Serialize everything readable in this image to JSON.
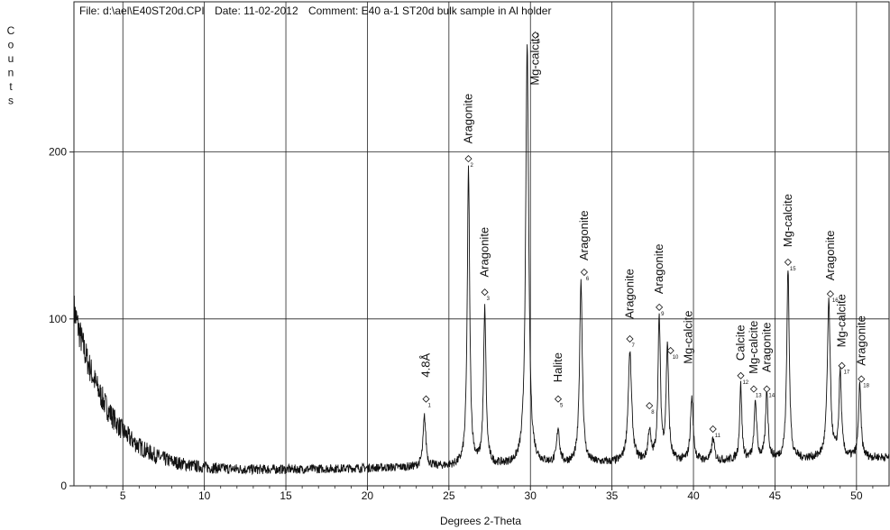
{
  "header": {
    "file_label": "File:",
    "file_value": "d:\\ael\\E40ST20d.CPI",
    "date_label": "Date:",
    "date_value": "11-02-2012",
    "comment_label": "Comment:",
    "comment_value": "E40 a-1 ST20d bulk sample in Al holder"
  },
  "chart_data": {
    "type": "line",
    "title": "",
    "xlabel": "Degrees 2-Theta",
    "ylabel": "Counts",
    "xlim": [
      2,
      52
    ],
    "ylim": [
      0,
      290
    ],
    "x_ticks": [
      5,
      10,
      15,
      20,
      25,
      30,
      35,
      40,
      45,
      50
    ],
    "y_ticks": [
      0,
      100,
      200
    ],
    "grid": true,
    "background": {
      "start": 106,
      "decay": 13.5,
      "tau": 2.2,
      "floor": 7,
      "slope": 0.2
    },
    "peaks": [
      {
        "x": 23.5,
        "y": 37,
        "w": 0.1
      },
      {
        "x": 26.2,
        "y": 184,
        "w": 0.09
      },
      {
        "x": 27.2,
        "y": 100,
        "w": 0.09
      },
      {
        "x": 29.8,
        "y": 258,
        "w": 0.11
      },
      {
        "x": 31.7,
        "y": 28,
        "w": 0.1
      },
      {
        "x": 33.1,
        "y": 117,
        "w": 0.1
      },
      {
        "x": 36.1,
        "y": 72,
        "w": 0.13
      },
      {
        "x": 37.3,
        "y": 25,
        "w": 0.1
      },
      {
        "x": 37.9,
        "y": 92,
        "w": 0.09
      },
      {
        "x": 38.4,
        "y": 76,
        "w": 0.09
      },
      {
        "x": 39.9,
        "y": 45,
        "w": 0.1
      },
      {
        "x": 41.2,
        "y": 20,
        "w": 0.1
      },
      {
        "x": 42.9,
        "y": 52,
        "w": 0.08
      },
      {
        "x": 43.8,
        "y": 42,
        "w": 0.09
      },
      {
        "x": 44.5,
        "y": 48,
        "w": 0.09
      },
      {
        "x": 45.8,
        "y": 122,
        "w": 0.09
      },
      {
        "x": 48.3,
        "y": 100,
        "w": 0.11
      },
      {
        "x": 49.0,
        "y": 58,
        "w": 0.09
      },
      {
        "x": 50.2,
        "y": 50,
        "w": 0.09
      }
    ],
    "noise": 5,
    "labels": [
      {
        "text": "4.8Å",
        "x": 23.6,
        "y": 65,
        "num": "1",
        "marker_y": 52
      },
      {
        "text": "Aragonite",
        "x": 26.2,
        "y": 205,
        "num": "2",
        "marker_y": 196
      },
      {
        "text": "Aragonite",
        "x": 27.2,
        "y": 125,
        "num": "3",
        "marker_y": 116
      },
      {
        "text": "Mg-calcite",
        "x": 30.3,
        "y": 240,
        "num": "4",
        "marker_y": 270
      },
      {
        "text": "Halite",
        "x": 31.7,
        "y": 62,
        "num": "5",
        "marker_y": 52
      },
      {
        "text": "Aragonite",
        "x": 33.3,
        "y": 135,
        "num": "6",
        "marker_y": 128
      },
      {
        "text": "Aragonite",
        "x": 36.1,
        "y": 100,
        "num": "7",
        "marker_y": 88
      },
      {
        "text": "",
        "x": 37.3,
        "y": 0,
        "num": "8",
        "marker_y": 48
      },
      {
        "text": "Aragonite",
        "x": 37.9,
        "y": 115,
        "num": "9",
        "marker_y": 107
      },
      {
        "text": "",
        "x": 38.6,
        "y": 0,
        "num": "10",
        "marker_y": 81
      },
      {
        "text": "Mg-calcite",
        "x": 39.7,
        "y": 73,
        "num": "",
        "marker_y": 0
      },
      {
        "text": "",
        "x": 41.2,
        "y": 0,
        "num": "11",
        "marker_y": 34
      },
      {
        "text": "Calcite",
        "x": 42.9,
        "y": 75,
        "num": "12",
        "marker_y": 66
      },
      {
        "text": "Mg-calcite",
        "x": 43.7,
        "y": 67,
        "num": "13",
        "marker_y": 58
      },
      {
        "text": "Aragonite",
        "x": 44.5,
        "y": 68,
        "num": "14",
        "marker_y": 58
      },
      {
        "text": "Mg-calcite",
        "x": 45.8,
        "y": 143,
        "num": "15",
        "marker_y": 134
      },
      {
        "text": "Aragonite",
        "x": 48.4,
        "y": 123,
        "num": "16",
        "marker_y": 115
      },
      {
        "text": "Mg-calcite",
        "x": 49.1,
        "y": 83,
        "num": "17",
        "marker_y": 72
      },
      {
        "text": "Aragonite",
        "x": 50.3,
        "y": 72,
        "num": "18",
        "marker_y": 64
      }
    ],
    "colors": {
      "trace": "#111111",
      "grid": "#222222"
    }
  }
}
